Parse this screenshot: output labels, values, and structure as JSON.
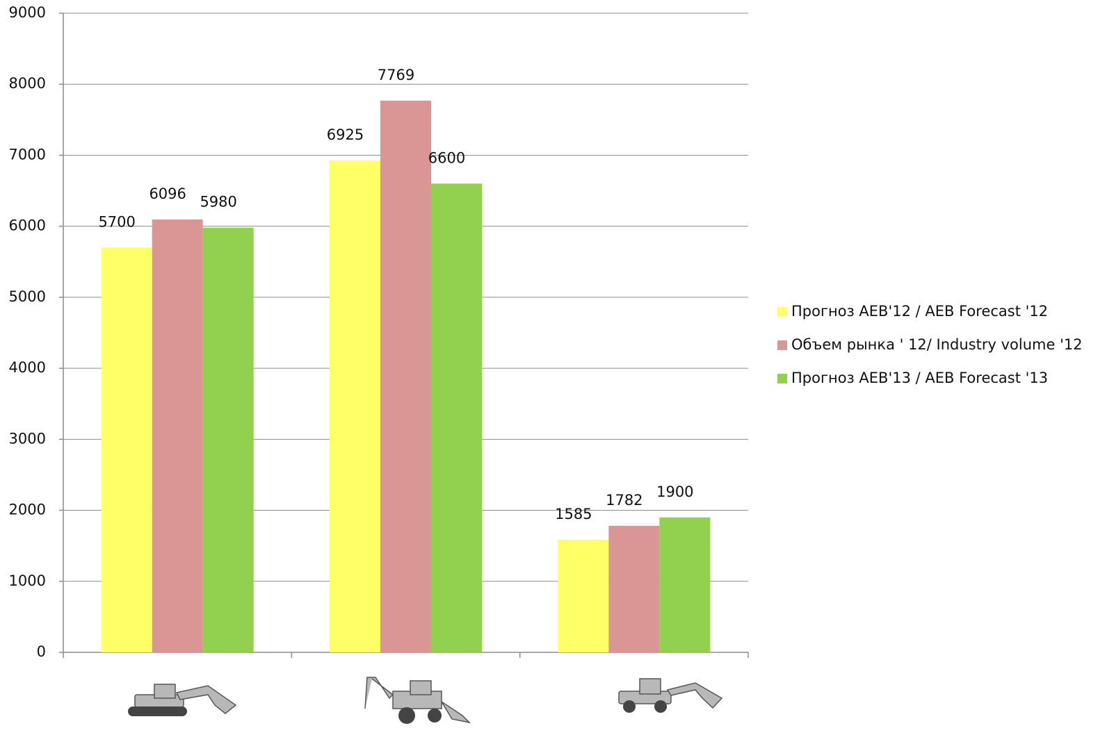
{
  "chart_data": {
    "type": "bar",
    "categories": [
      null,
      null,
      null
    ],
    "series": [
      {
        "name": "Прогноз AEB'12 / AEB  Forecast '12",
        "color": "#ffff66",
        "values": [
          5700,
          6925,
          1585
        ]
      },
      {
        "name": "Объем рынка ' 12/ Industry volume '12",
        "color": "#d99694",
        "values": [
          6096,
          7769,
          1782
        ]
      },
      {
        "name": "Прогноз AEB'13 / AEB  Forecast '13",
        "color": "#92d050",
        "values": [
          5980,
          6600,
          1900
        ]
      }
    ],
    "ylim": [
      0,
      9000
    ],
    "yticks": [
      0,
      1000,
      2000,
      3000,
      4000,
      5000,
      6000,
      7000,
      8000,
      9000
    ],
    "grid": true,
    "legend": "right"
  }
}
